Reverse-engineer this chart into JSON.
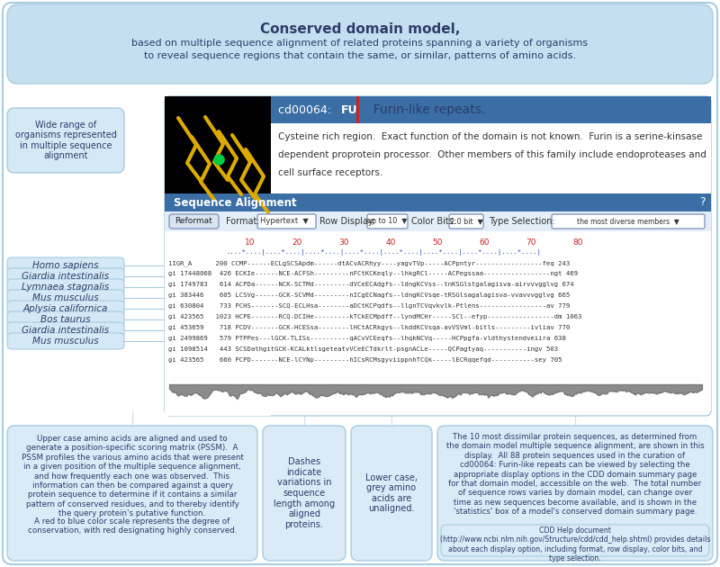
{
  "title_bold": "Conserved domain model,",
  "title_sub1": "based on multiple sequence alignment of related proteins spanning a variety of organisms",
  "title_sub2": "to reveal sequence regions that contain the same, or similar, patterns of amino acids.",
  "top_box_color": "#c5dff0",
  "domain_id_plain": "cd00064: ",
  "domain_id_bold": "FU",
  "domain_name": "  Furin-like repeats.",
  "domain_desc1": "Cysteine rich region.  Exact function of the domain is not known.  Furin is a serine-kinsase",
  "domain_desc2": "dependent proprotein processor.  Other members of this family include endoproteases and",
  "domain_desc3": "cell surface receptors.",
  "seq_align_label": "Sequence Alignment",
  "left_labels": [
    "Homo sapiens",
    "Giardia intestinalis",
    "Lymnaea stagnalis",
    "Mus musculus",
    "Aplysia californica",
    "Bos taurus",
    "Giardia intestinalis",
    "Mus musculus"
  ],
  "seq_rows": [
    "1IGR_A      200 CCMP------ECLgSCSApdm------dtACvACRhyy----yagvTVp-----ACPpntyr-----------------feq 243",
    "gi 17448068  426 ECKIe------NCE-ACFSh---------nFCtKCKeqly--lhkgRCl-----ACPegssaa-----------------ngt 469",
    "gi 1749783   614 ACPDa------NCK-SCTMd---------dVCeECAdgfs--ldngKCVss--tnKSGlstgalagisva-airvvvgglvg 674",
    "gi 383446    605 LCSVg------GCK-SCVMd---------nICgECNagfs--ldngKCVsqe-tRSGlsagalagisva-vvavvvgglvg 665",
    "gi 630804    733 PCHS-------SCQ-ECLHsa--------aDCtKCPqdfs--llgnTCVqvkvlk-Ptlens-----------------av 779",
    "gi 423565   1023 HCPE-------RCQ-DCIHe---------kTCkECMpdff--lyndMCHr-----SCl--efyp-----------------dm 1063",
    "gi 453659    718 PCDV-------GCK-HCESsa--------lHCtACRkgys--lkddKCVsqa-avVSVml-bitls---------ivliav 770",
    "gi 2499869   579 PTPPes---lGCK-TLISs----------qACvVCEeqfs--lhqkNCVq-----HCPpgfa-vldthystendveiira 638",
    "gi 1098514   443 SCSDathgitGCK-KCALktlsgeteatvVCeECTdkrlt-psgnACLe-----QCPagtyaq-----------ingv 503",
    "gi 423565    660 PCPD-------NCE-lCYNp---------hICsRCMsgyviippnhTCQk-----lECRqqefqd-----------sey 705"
  ],
  "bottom_left_text1": "Upper case amino acids are aligned and used to\ngenerate a position-specific scoring matrix (PSSM).  A\nPSSM profiles the various amino acids that were present\nin a given position of the multiple sequence alignment,\nand how frequently each one was observed.  This\ninformation can then be compared against a query\nprotein sequence to determine if it contains a similar\npattern of conserved residues, and to thereby identify\nthe query protein's putative function.",
  "bottom_left_text2": "A red to blue color scale represents the degree of\nconservation, with red designating highly conserved.",
  "bottom_mid_text1": "Dashes\nindicate\nvariations in\nsequence\nlength among\naligned\nproteins.",
  "bottom_mid_text2": "Lower case,\ngrey amino\nacids are\nunaligned.",
  "bottom_right_text1": "The 10 most dissimilar protein sequences, as determined from\nthe domain model multiple sequence alignment, are shown in this\ndisplay.  All 88 protein sequences used in the curation of\ncd00064: Furin-like repeats can be viewed by selecting the\nappropriate display options in the CDD domain summary page\nfor that domain model, accessible on the web.  The total number\nof sequence rows varies by domain model, can change over\ntime as new sequences become available, and is shown in the\n'statistics' box of a model's conserved domain summary page.",
  "bottom_right_text2": "CDD Help document\n(http://www.ncbi.nlm.nih.gov/Structure/cdd/cdd_help.shtml) provides details\nabout each display option, including format, row display, color bits, and\ntype selection.",
  "wide_range_text": "Wide range of\norganisms represented\nin multiple sequence\nalignment",
  "header_blue": "#3a6ea5",
  "light_blue_bg": "#c8dff0",
  "box_blue": "#daeaf7",
  "label_box_blue": "#d4e8f5",
  "text_dark": "#2c3e6b",
  "text_body": "#333333"
}
